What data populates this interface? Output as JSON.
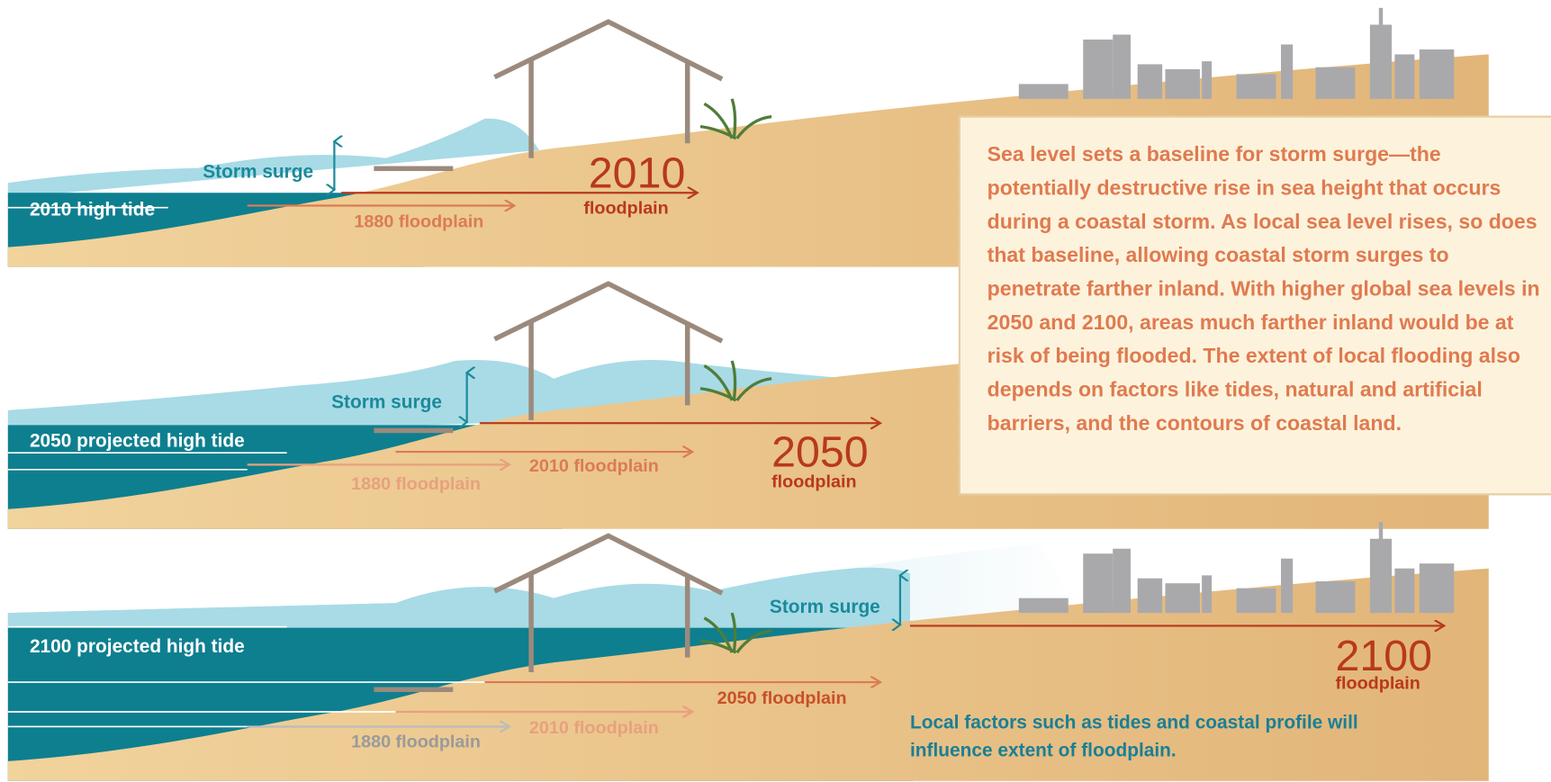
{
  "panels": [
    {
      "high_tide": "2010 high tide",
      "storm_surge": "Storm surge",
      "floodplain_year": "2010",
      "floodplain_label": "floodplain",
      "past_floodplains": [
        "1880 floodplain"
      ]
    },
    {
      "high_tide": "2050 projected high tide",
      "storm_surge": "Storm surge",
      "floodplain_year": "2050",
      "floodplain_label": "floodplain",
      "past_floodplains": [
        "2010 floodplain",
        "1880 floodplain"
      ]
    },
    {
      "high_tide": "2100 projected high tide",
      "storm_surge": "Storm surge",
      "floodplain_year": "2100",
      "floodplain_label": "floodplain",
      "past_floodplains": [
        "2050 floodplain",
        "2010 floodplain",
        "1880 floodplain"
      ]
    }
  ],
  "explanation": "Sea level sets a baseline for storm surge—the potentially destructive rise in sea height that occurs during a coastal storm. As local sea level rises, so does that baseline, allowing coastal storm surges to penetrate farther inland. With higher global sea levels in 2050 and 2100, areas much farther inland would be at risk of being flooded. The extent of local flooding also depends on factors like tides, natural and artificial barriers, and the contours of coastal land.",
  "note": "Local factors such as tides and coastal profile will influence extent of floodplain."
}
